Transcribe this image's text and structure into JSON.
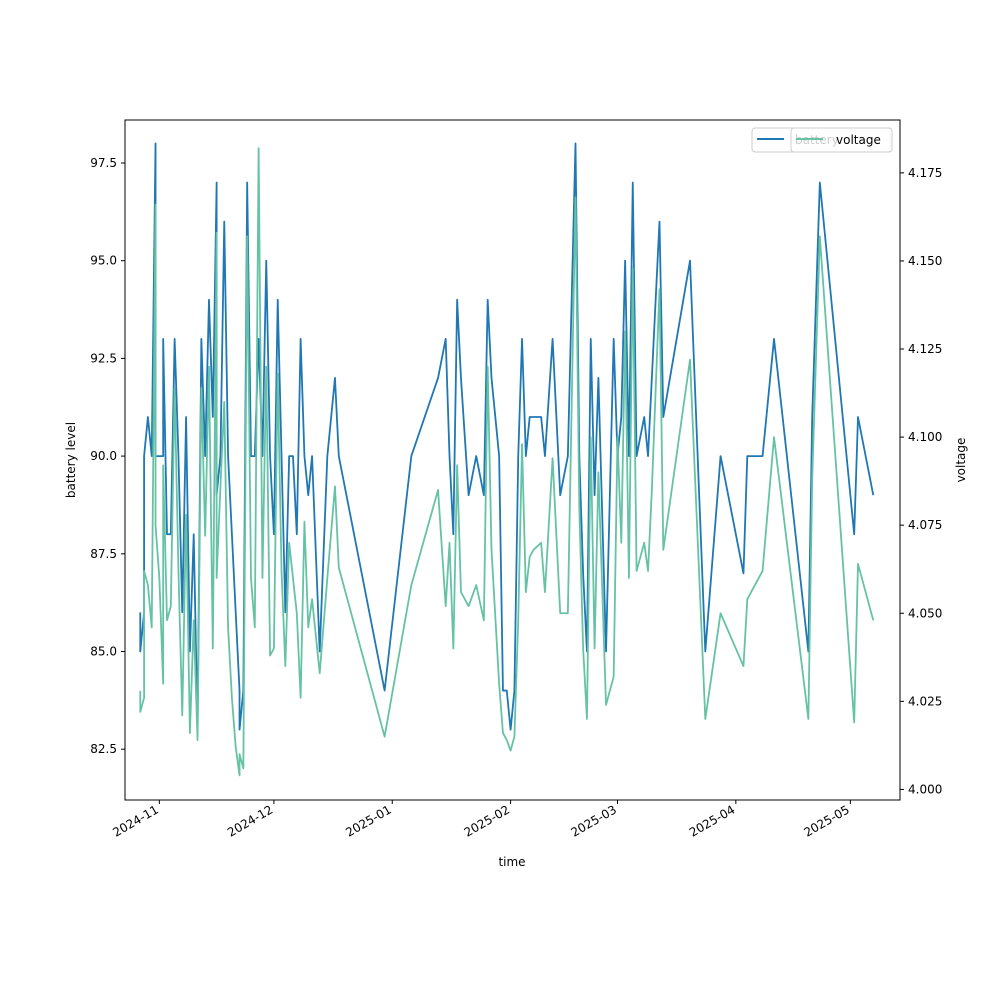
{
  "chart_data": {
    "type": "line",
    "title": "",
    "xlabel": "time",
    "ylabel_left": "battery level",
    "ylabel_right": "voltage",
    "x_range": [
      "2024-10-23",
      "2025-05-14"
    ],
    "ylim_left": [
      81.2,
      98.6
    ],
    "ylim_right": [
      3.997,
      4.19
    ],
    "x_ticks": [
      {
        "date": "2024-11-01",
        "label": "2024-11"
      },
      {
        "date": "2024-12-01",
        "label": "2024-12"
      },
      {
        "date": "2025-01-01",
        "label": "2025-01"
      },
      {
        "date": "2025-02-01",
        "label": "2025-02"
      },
      {
        "date": "2025-03-01",
        "label": "2025-03"
      },
      {
        "date": "2025-04-01",
        "label": "2025-04"
      },
      {
        "date": "2025-05-01",
        "label": "2025-05"
      }
    ],
    "y_ticks_left": [
      {
        "value": 82.5,
        "label": "82.5"
      },
      {
        "value": 85.0,
        "label": "85.0"
      },
      {
        "value": 87.5,
        "label": "87.5"
      },
      {
        "value": 90.0,
        "label": "90.0"
      },
      {
        "value": 92.5,
        "label": "92.5"
      },
      {
        "value": 95.0,
        "label": "95.0"
      },
      {
        "value": 97.5,
        "label": "97.5"
      }
    ],
    "y_ticks_right": [
      {
        "value": 4.0,
        "label": "4.000"
      },
      {
        "value": 4.025,
        "label": "4.025"
      },
      {
        "value": 4.05,
        "label": "4.050"
      },
      {
        "value": 4.075,
        "label": "4.075"
      },
      {
        "value": 4.1,
        "label": "4.100"
      },
      {
        "value": 4.125,
        "label": "4.125"
      },
      {
        "value": 4.15,
        "label": "4.150"
      },
      {
        "value": 4.175,
        "label": "4.175"
      }
    ],
    "grid": false,
    "legend": {
      "placement": "top-right",
      "entries": [
        {
          "name": "battery",
          "color": "#1f77b4"
        },
        {
          "name": "voltage",
          "color": "#66c2a5"
        }
      ]
    },
    "series": [
      {
        "name": "battery",
        "axis": "left",
        "color": "#1f77b4",
        "points": [
          [
            "2024-10-27",
            86
          ],
          [
            "2024-10-27",
            85
          ],
          [
            "2024-10-28",
            86
          ],
          [
            "2024-10-28",
            90
          ],
          [
            "2024-10-29",
            91
          ],
          [
            "2024-10-30",
            90
          ],
          [
            "2024-10-31",
            98
          ],
          [
            "2024-10-31",
            90
          ],
          [
            "2024-11-01",
            90
          ],
          [
            "2024-11-02",
            90
          ],
          [
            "2024-11-02",
            93
          ],
          [
            "2024-11-03",
            88
          ],
          [
            "2024-11-04",
            88
          ],
          [
            "2024-11-05",
            93
          ],
          [
            "2024-11-06",
            90
          ],
          [
            "2024-11-07",
            86
          ],
          [
            "2024-11-08",
            91
          ],
          [
            "2024-11-09",
            85
          ],
          [
            "2024-11-10",
            88
          ],
          [
            "2024-11-11",
            83
          ],
          [
            "2024-11-12",
            93
          ],
          [
            "2024-11-13",
            90
          ],
          [
            "2024-11-14",
            94
          ],
          [
            "2024-11-15",
            91
          ],
          [
            "2024-11-16",
            97
          ],
          [
            "2024-11-16",
            89
          ],
          [
            "2024-11-17",
            90
          ],
          [
            "2024-11-18",
            96
          ],
          [
            "2024-11-19",
            90
          ],
          [
            "2024-11-20",
            88
          ],
          [
            "2024-11-21",
            86
          ],
          [
            "2024-11-22",
            84
          ],
          [
            "2024-11-22",
            83
          ],
          [
            "2024-11-23",
            84
          ],
          [
            "2024-11-24",
            97
          ],
          [
            "2024-11-25",
            90
          ],
          [
            "2024-11-26",
            90
          ],
          [
            "2024-11-27",
            93
          ],
          [
            "2024-11-28",
            90
          ],
          [
            "2024-11-29",
            95
          ],
          [
            "2024-11-30",
            90
          ],
          [
            "2024-12-01",
            88
          ],
          [
            "2024-12-02",
            94
          ],
          [
            "2024-12-03",
            90
          ],
          [
            "2024-12-04",
            86
          ],
          [
            "2024-12-05",
            90
          ],
          [
            "2024-12-06",
            90
          ],
          [
            "2024-12-07",
            88
          ],
          [
            "2024-12-08",
            93
          ],
          [
            "2024-12-09",
            90
          ],
          [
            "2024-12-10",
            89
          ],
          [
            "2024-12-11",
            90
          ],
          [
            "2024-12-13",
            85
          ],
          [
            "2024-12-15",
            90
          ],
          [
            "2024-12-17",
            92
          ],
          [
            "2024-12-18",
            90
          ],
          [
            "2024-12-30",
            84
          ],
          [
            "2025-01-06",
            90
          ],
          [
            "2025-01-13",
            92
          ],
          [
            "2025-01-15",
            93
          ],
          [
            "2025-01-16",
            90
          ],
          [
            "2025-01-17",
            88
          ],
          [
            "2025-01-18",
            94
          ],
          [
            "2025-01-19",
            92
          ],
          [
            "2025-01-21",
            89
          ],
          [
            "2025-01-23",
            90
          ],
          [
            "2025-01-25",
            89
          ],
          [
            "2025-01-26",
            94
          ],
          [
            "2025-01-27",
            92
          ],
          [
            "2025-01-29",
            90
          ],
          [
            "2025-01-30",
            84
          ],
          [
            "2025-01-31",
            84
          ],
          [
            "2025-02-01",
            83
          ],
          [
            "2025-02-02",
            84
          ],
          [
            "2025-02-03",
            90
          ],
          [
            "2025-02-04",
            93
          ],
          [
            "2025-02-05",
            90
          ],
          [
            "2025-02-06",
            91
          ],
          [
            "2025-02-07",
            91
          ],
          [
            "2025-02-09",
            91
          ],
          [
            "2025-02-10",
            90
          ],
          [
            "2025-02-12",
            93
          ],
          [
            "2025-02-14",
            89
          ],
          [
            "2025-02-16",
            90
          ],
          [
            "2025-02-18",
            98
          ],
          [
            "2025-02-19",
            90
          ],
          [
            "2025-02-20",
            87
          ],
          [
            "2025-02-21",
            85
          ],
          [
            "2025-02-22",
            93
          ],
          [
            "2025-02-23",
            89
          ],
          [
            "2025-02-24",
            92
          ],
          [
            "2025-02-26",
            85
          ],
          [
            "2025-02-28",
            93
          ],
          [
            "2025-03-01",
            90
          ],
          [
            "2025-03-02",
            91
          ],
          [
            "2025-03-03",
            95
          ],
          [
            "2025-03-04",
            90
          ],
          [
            "2025-03-05",
            97
          ],
          [
            "2025-03-06",
            90
          ],
          [
            "2025-03-08",
            91
          ],
          [
            "2025-03-09",
            90
          ],
          [
            "2025-03-10",
            92
          ],
          [
            "2025-03-12",
            96
          ],
          [
            "2025-03-13",
            91
          ],
          [
            "2025-03-20",
            95
          ],
          [
            "2025-03-24",
            85
          ],
          [
            "2025-03-28",
            90
          ],
          [
            "2025-04-03",
            87
          ],
          [
            "2025-04-04",
            90
          ],
          [
            "2025-04-08",
            90
          ],
          [
            "2025-04-11",
            93
          ],
          [
            "2025-04-20",
            85
          ],
          [
            "2025-04-21",
            91
          ],
          [
            "2025-04-23",
            97
          ],
          [
            "2025-05-02",
            88
          ],
          [
            "2025-05-03",
            91
          ],
          [
            "2025-05-07",
            89
          ]
        ]
      },
      {
        "name": "voltage",
        "axis": "right",
        "color": "#66c2a5",
        "points": [
          [
            "2024-10-27",
            4.028
          ],
          [
            "2024-10-27",
            4.022
          ],
          [
            "2024-10-28",
            4.026
          ],
          [
            "2024-10-28",
            4.062
          ],
          [
            "2024-10-29",
            4.058
          ],
          [
            "2024-10-30",
            4.046
          ],
          [
            "2024-10-31",
            4.166
          ],
          [
            "2024-10-31",
            4.075
          ],
          [
            "2024-11-01",
            4.06
          ],
          [
            "2024-11-02",
            4.03
          ],
          [
            "2024-11-02",
            4.092
          ],
          [
            "2024-11-03",
            4.048
          ],
          [
            "2024-11-04",
            4.052
          ],
          [
            "2024-11-05",
            4.114
          ],
          [
            "2024-11-06",
            4.062
          ],
          [
            "2024-11-07",
            4.021
          ],
          [
            "2024-11-08",
            4.078
          ],
          [
            "2024-11-09",
            4.016
          ],
          [
            "2024-11-10",
            4.048
          ],
          [
            "2024-11-11",
            4.014
          ],
          [
            "2024-11-12",
            4.114
          ],
          [
            "2024-11-13",
            4.072
          ],
          [
            "2024-11-14",
            4.12
          ],
          [
            "2024-11-15",
            4.04
          ],
          [
            "2024-11-16",
            4.158
          ],
          [
            "2024-11-16",
            4.06
          ],
          [
            "2024-11-17",
            4.086
          ],
          [
            "2024-11-18",
            4.11
          ],
          [
            "2024-11-19",
            4.046
          ],
          [
            "2024-11-20",
            4.026
          ],
          [
            "2024-11-21",
            4.012
          ],
          [
            "2024-11-22",
            4.004
          ],
          [
            "2024-11-22",
            4.01
          ],
          [
            "2024-11-23",
            4.006
          ],
          [
            "2024-11-24",
            4.157
          ],
          [
            "2024-11-25",
            4.06
          ],
          [
            "2024-11-26",
            4.046
          ],
          [
            "2024-11-27",
            4.182
          ],
          [
            "2024-11-28",
            4.06
          ],
          [
            "2024-11-29",
            4.12
          ],
          [
            "2024-11-30",
            4.038
          ],
          [
            "2024-12-01",
            4.04
          ],
          [
            "2024-12-02",
            4.118
          ],
          [
            "2024-12-03",
            4.062
          ],
          [
            "2024-12-04",
            4.035
          ],
          [
            "2024-12-05",
            4.07
          ],
          [
            "2024-12-06",
            4.06
          ],
          [
            "2024-12-07",
            4.05
          ],
          [
            "2024-12-08",
            4.026
          ],
          [
            "2024-12-09",
            4.076
          ],
          [
            "2024-12-10",
            4.046
          ],
          [
            "2024-12-11",
            4.054
          ],
          [
            "2024-12-13",
            4.033
          ],
          [
            "2024-12-15",
            4.06
          ],
          [
            "2024-12-17",
            4.086
          ],
          [
            "2024-12-18",
            4.063
          ],
          [
            "2024-12-30",
            4.015
          ],
          [
            "2025-01-06",
            4.058
          ],
          [
            "2025-01-13",
            4.085
          ],
          [
            "2025-01-15",
            4.052
          ],
          [
            "2025-01-16",
            4.07
          ],
          [
            "2025-01-17",
            4.04
          ],
          [
            "2025-01-18",
            4.092
          ],
          [
            "2025-01-19",
            4.056
          ],
          [
            "2025-01-21",
            4.052
          ],
          [
            "2025-01-23",
            4.058
          ],
          [
            "2025-01-25",
            4.048
          ],
          [
            "2025-01-26",
            4.12
          ],
          [
            "2025-01-27",
            4.068
          ],
          [
            "2025-01-29",
            4.03
          ],
          [
            "2025-01-30",
            4.016
          ],
          [
            "2025-01-31",
            4.014
          ],
          [
            "2025-02-01",
            4.011
          ],
          [
            "2025-02-02",
            4.015
          ],
          [
            "2025-02-03",
            4.048
          ],
          [
            "2025-02-04",
            4.098
          ],
          [
            "2025-02-05",
            4.056
          ],
          [
            "2025-02-06",
            4.066
          ],
          [
            "2025-02-07",
            4.068
          ],
          [
            "2025-02-09",
            4.07
          ],
          [
            "2025-02-10",
            4.056
          ],
          [
            "2025-02-12",
            4.094
          ],
          [
            "2025-02-14",
            4.05
          ],
          [
            "2025-02-16",
            4.05
          ],
          [
            "2025-02-18",
            4.168
          ],
          [
            "2025-02-19",
            4.08
          ],
          [
            "2025-02-20",
            4.04
          ],
          [
            "2025-02-21",
            4.02
          ],
          [
            "2025-02-22",
            4.1
          ],
          [
            "2025-02-23",
            4.04
          ],
          [
            "2025-02-24",
            4.09
          ],
          [
            "2025-02-26",
            4.024
          ],
          [
            "2025-02-28",
            4.032
          ],
          [
            "2025-03-01",
            4.1
          ],
          [
            "2025-03-02",
            4.07
          ],
          [
            "2025-03-03",
            4.13
          ],
          [
            "2025-03-04",
            4.06
          ],
          [
            "2025-03-05",
            4.148
          ],
          [
            "2025-03-06",
            4.062
          ],
          [
            "2025-03-08",
            4.07
          ],
          [
            "2025-03-09",
            4.062
          ],
          [
            "2025-03-10",
            4.085
          ],
          [
            "2025-03-12",
            4.142
          ],
          [
            "2025-03-13",
            4.068
          ],
          [
            "2025-03-20",
            4.122
          ],
          [
            "2025-03-24",
            4.02
          ],
          [
            "2025-03-28",
            4.05
          ],
          [
            "2025-04-03",
            4.035
          ],
          [
            "2025-04-04",
            4.054
          ],
          [
            "2025-04-08",
            4.062
          ],
          [
            "2025-04-11",
            4.1
          ],
          [
            "2025-04-20",
            4.02
          ],
          [
            "2025-04-21",
            4.088
          ],
          [
            "2025-04-23",
            4.157
          ],
          [
            "2025-05-02",
            4.019
          ],
          [
            "2025-05-03",
            4.064
          ],
          [
            "2025-05-07",
            4.048
          ]
        ]
      }
    ]
  }
}
